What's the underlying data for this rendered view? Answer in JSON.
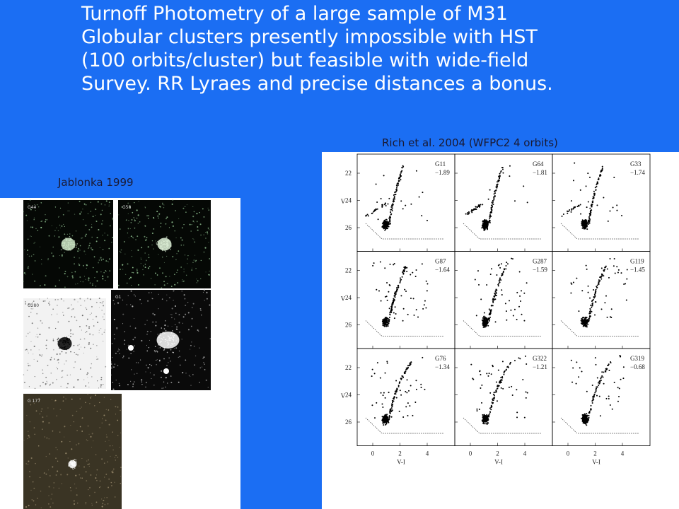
{
  "slide": {
    "title_lines": [
      "Turnoff Photometry of a large sample of M31",
      "Globular clusters presently impossible with HST",
      "(100 orbits/cluster) but feasible with wide-field",
      "Survey.  RR Lyraes and precise distances a bonus."
    ],
    "caption_left": "Jablonka 1999",
    "caption_right": "Rich et al. 2004  (WFPC2 4 orbits)"
  },
  "images_left": {
    "labels": [
      "G44",
      "G58",
      "G280",
      "G1",
      "G 177"
    ]
  },
  "cmd_grid": {
    "panels": [
      {
        "name": "G11",
        "metallicity": "−1.89"
      },
      {
        "name": "G64",
        "metallicity": "−1.81"
      },
      {
        "name": "G33",
        "metallicity": "−1.74"
      },
      {
        "name": "G87",
        "metallicity": "−1.64"
      },
      {
        "name": "G287",
        "metallicity": "−1.59"
      },
      {
        "name": "G119",
        "metallicity": "−1.45"
      },
      {
        "name": "G76",
        "metallicity": "−1.34"
      },
      {
        "name": "G322",
        "metallicity": "−1.21"
      },
      {
        "name": "G319",
        "metallicity": "−0.68"
      }
    ],
    "yticks": [
      "22",
      "24",
      "26"
    ],
    "xticks": [
      "0",
      "2",
      "4"
    ],
    "ylabel": "V",
    "xlabel": "V-I"
  }
}
